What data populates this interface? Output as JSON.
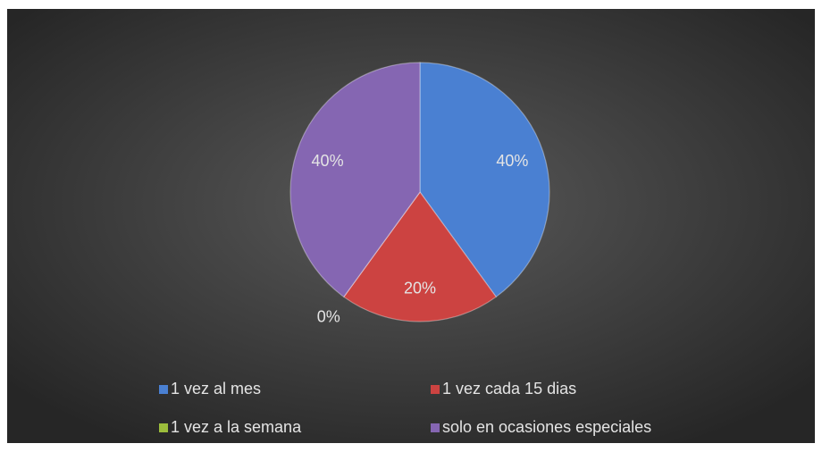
{
  "chart_data": {
    "type": "pie",
    "categories": [
      "1 vez al mes",
      "1 vez cada 15 dias",
      "1 vez a la semana",
      "solo en ocasiones especiales"
    ],
    "values": [
      40,
      20,
      0,
      40
    ],
    "value_labels": [
      "40%",
      "20%",
      "0%",
      "40%"
    ],
    "colors": [
      "#4a80d2",
      "#cc4341",
      "#9cbd3c",
      "#8566b2"
    ],
    "legend": "bottom"
  }
}
